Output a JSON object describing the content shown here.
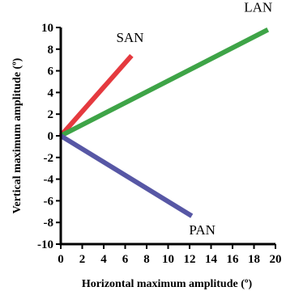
{
  "chart_data": {
    "type": "line",
    "xlabel": "Horizontal maximum amplitude (º)",
    "ylabel": "Vertical maximum amplitude (º)",
    "xlim": [
      0,
      20
    ],
    "ylim": [
      -10,
      10
    ],
    "xticks": [
      0,
      2,
      4,
      6,
      8,
      10,
      12,
      14,
      16,
      18,
      20
    ],
    "yticks": [
      10,
      8,
      6,
      4,
      2,
      0,
      -2,
      -4,
      -6,
      -8,
      -10
    ],
    "grid": false,
    "series": [
      {
        "name": "SAN",
        "color": "#e53a3f",
        "x": [
          0,
          6.6
        ],
        "y": [
          0,
          7.4
        ]
      },
      {
        "name": "LAN",
        "color": "#3ea447",
        "x": [
          0,
          19.3
        ],
        "y": [
          0,
          9.8
        ]
      },
      {
        "name": "PAN",
        "color": "#5757a5",
        "x": [
          0,
          12.2
        ],
        "y": [
          0,
          -7.4
        ]
      }
    ]
  }
}
